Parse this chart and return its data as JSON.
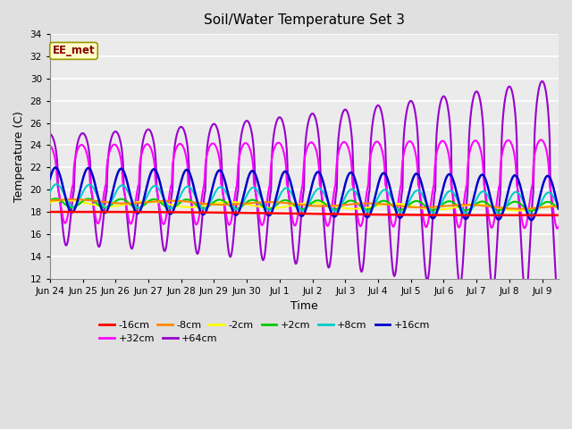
{
  "title": "Soil/Water Temperature Set 3",
  "xlabel": "Time",
  "ylabel": "Temperature (C)",
  "annotation": "EE_met",
  "ylim": [
    12,
    34
  ],
  "yticks": [
    12,
    14,
    16,
    18,
    20,
    22,
    24,
    26,
    28,
    30,
    32,
    34
  ],
  "xtick_labels": [
    "Jun 24",
    "Jun 25",
    "Jun 26",
    "Jun 27",
    "Jun 28",
    "Jun 29",
    "Jun 30",
    "Jul 1",
    "Jul 2",
    "Jul 3",
    "Jul 4",
    "Jul 5",
    "Jul 6",
    "Jul 7",
    "Jul 8",
    "Jul 9"
  ],
  "series_labels": [
    "-16cm",
    "-8cm",
    "-2cm",
    "+2cm",
    "+8cm",
    "+16cm",
    "+32cm",
    "+64cm"
  ],
  "series_colors": [
    "#ff0000",
    "#ff8800",
    "#ffff00",
    "#00cc00",
    "#00cccc",
    "#0000cc",
    "#ff00ff",
    "#9900cc"
  ],
  "bg_color": "#e0e0e0",
  "plot_bg": "#ebebeb",
  "grid_color": "#ffffff",
  "n_days": 15.5,
  "n_points": 744,
  "figwidth": 6.4,
  "figheight": 4.8,
  "dpi": 100
}
